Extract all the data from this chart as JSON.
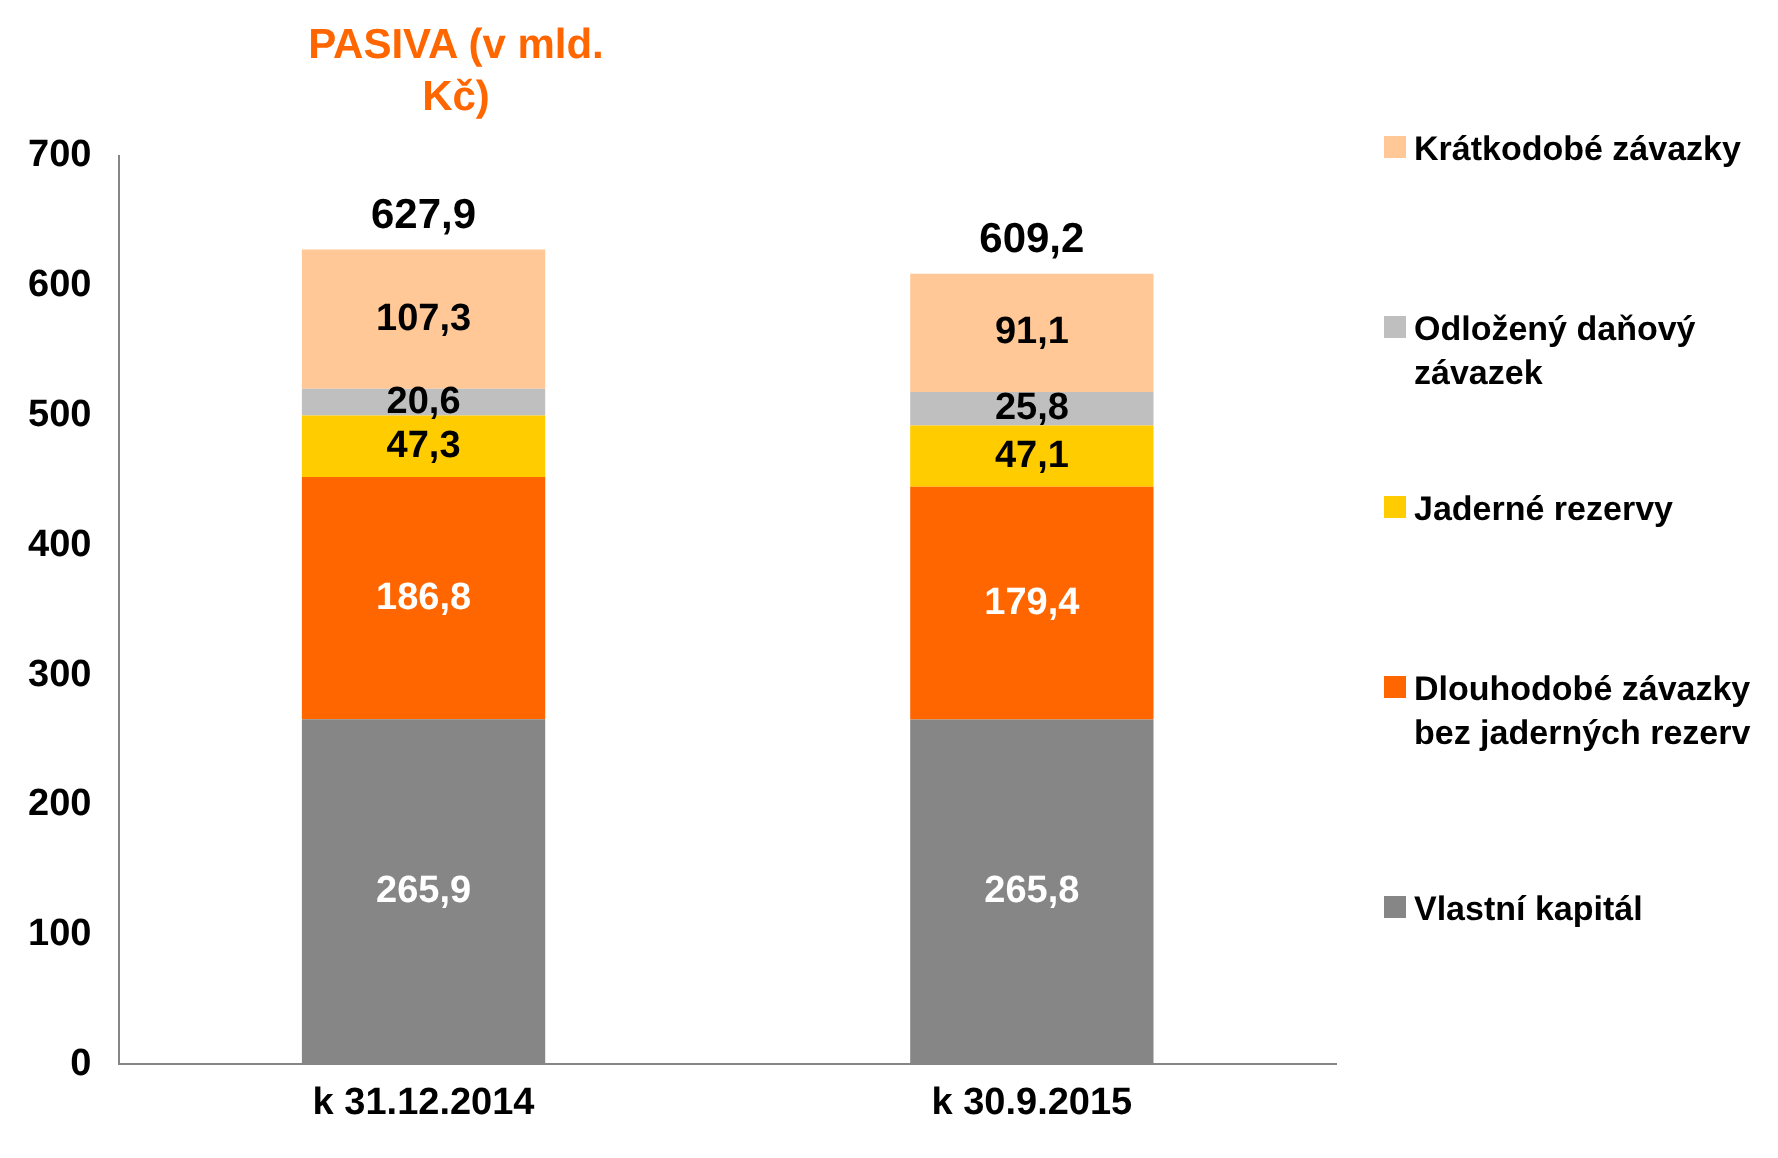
{
  "chart_data": {
    "type": "bar",
    "title": "PASIVA (v mld. Kč)",
    "stacked": true,
    "categories": [
      "k 31.12.2014",
      "k 30.9.2015"
    ],
    "series": [
      {
        "name": "Vlastní kapitál",
        "color": "#868686",
        "values": [
          265.9,
          265.8
        ],
        "value_labels": [
          "265,9",
          "265,8"
        ]
      },
      {
        "name": "Dlouhodobé závazky bez jaderných rezerv",
        "color": "#ff6600",
        "values": [
          186.8,
          179.4
        ],
        "value_labels": [
          "186,8",
          "179,4"
        ]
      },
      {
        "name": "Jaderné rezervy",
        "color": "#ffcc00",
        "values": [
          47.3,
          47.1
        ],
        "value_labels": [
          "47,3",
          "47,1"
        ]
      },
      {
        "name": "Odložený daňový závazek",
        "color": "#bfbfbf",
        "values": [
          20.6,
          25.8
        ],
        "value_labels": [
          "20,6",
          "25,8"
        ]
      },
      {
        "name": "Krátkodobé závazky",
        "color": "#ffc896",
        "values": [
          107.3,
          91.1
        ],
        "value_labels": [
          "107,3",
          "91,1"
        ]
      }
    ],
    "totals": [
      "627,9",
      "609,2"
    ],
    "ylim": [
      0,
      700
    ],
    "yticks": [
      0,
      100,
      200,
      300,
      400,
      500,
      600,
      700
    ],
    "grid": false,
    "legend": "right"
  }
}
